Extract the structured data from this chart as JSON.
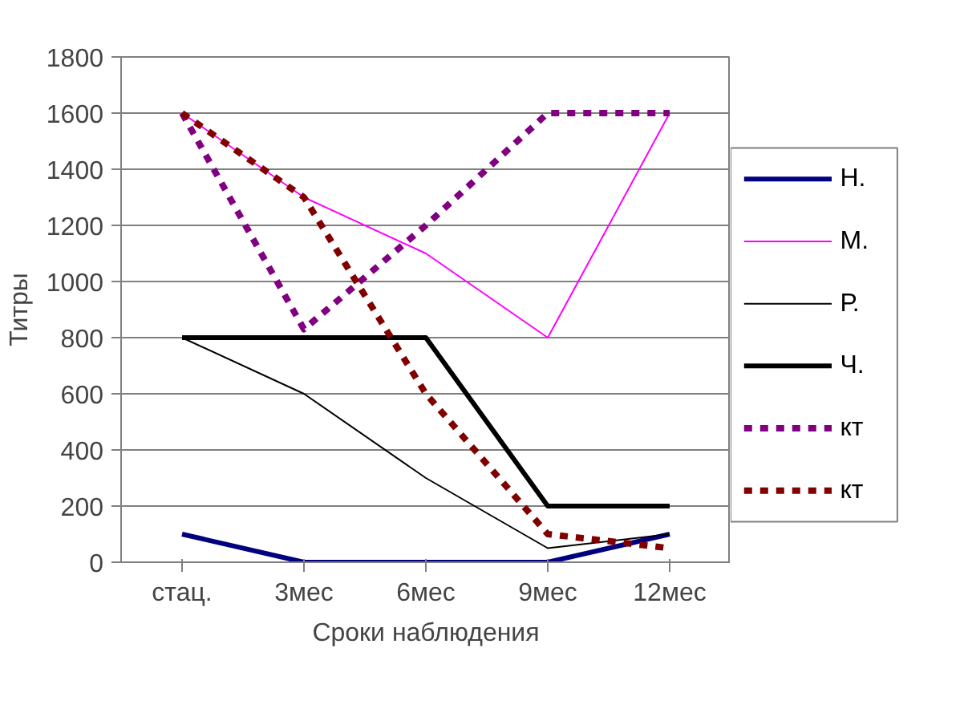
{
  "chart_data": {
    "type": "line",
    "xlabel": "Сроки наблюдения",
    "ylabel": "Титры",
    "categories": [
      "стац.",
      "3мес",
      "6мес",
      "9мес",
      "12мес"
    ],
    "ylim": [
      0,
      1800
    ],
    "yticks": [
      0,
      200,
      400,
      600,
      800,
      1000,
      1200,
      1400,
      1600,
      1800
    ],
    "grid": "y",
    "legend": "right",
    "marker": "none",
    "series": [
      {
        "name": "Н.",
        "color": "#000080",
        "values": [
          100,
          0,
          0,
          0,
          100
        ],
        "line_style": "solid"
      },
      {
        "name": "М.",
        "color": "#ff00ff",
        "values": [
          1600,
          1300,
          1100,
          800,
          1600
        ],
        "line_style": "solid"
      },
      {
        "name": "Р.",
        "color": "#000000",
        "values": [
          800,
          600,
          300,
          50,
          100
        ],
        "line_style": "solid"
      },
      {
        "name": "Ч.",
        "color": "#000000",
        "values": [
          800,
          800,
          800,
          200,
          200
        ],
        "line_style": "solid"
      },
      {
        "name": "кт",
        "color": "#800080",
        "values": [
          1600,
          830,
          1200,
          1600,
          1600
        ],
        "line_style": "dotted"
      },
      {
        "name": "кт",
        "color": "#800000",
        "values": [
          1600,
          1300,
          600,
          100,
          50
        ],
        "line_style": "dotted"
      }
    ]
  }
}
